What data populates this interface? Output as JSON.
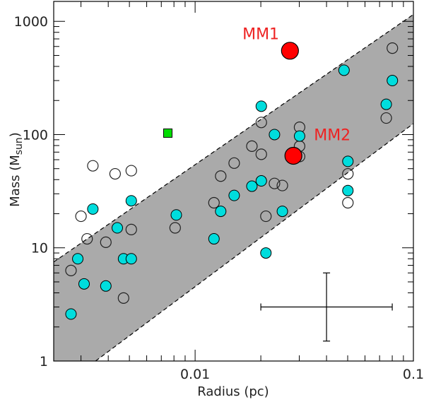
{
  "chart_data": {
    "type": "scatter",
    "xscale": "log",
    "yscale": "log",
    "xlim": [
      0.00225,
      0.1
    ],
    "ylim": [
      1,
      1500
    ],
    "xlabel": "Radius (pc)",
    "ylabel_main": "Mass (M",
    "ylabel_sub": "sun",
    "ylabel_close": ")",
    "x_ticks": [
      {
        "value": 0.01,
        "label": "0.01"
      },
      {
        "value": 0.1,
        "label": "0.1"
      }
    ],
    "y_ticks": [
      {
        "value": 1,
        "label": "1"
      },
      {
        "value": 10,
        "label": "10"
      },
      {
        "value": 100,
        "label": "100"
      },
      {
        "value": 1000,
        "label": "1000"
      }
    ],
    "band": {
      "upper": [
        [
          0.00225,
          7.5
        ],
        [
          0.1,
          1150
        ]
      ],
      "lower": [
        [
          0.0035,
          1
        ],
        [
          0.1,
          125
        ]
      ],
      "fill": "#aaaaaa"
    },
    "colors": {
      "open": "#222222",
      "cyan": "#00dddd",
      "red": "#ff0000",
      "green": "#00dd00",
      "label": "#ee2222"
    },
    "series": [
      {
        "name": "open",
        "points": [
          [
            0.0027,
            6.3
          ],
          [
            0.003,
            19
          ],
          [
            0.0032,
            12
          ],
          [
            0.0034,
            53
          ],
          [
            0.0039,
            11.2
          ],
          [
            0.0043,
            45
          ],
          [
            0.0047,
            3.6
          ],
          [
            0.0051,
            14.5
          ],
          [
            0.0051,
            48
          ],
          [
            0.0081,
            15
          ],
          [
            0.0122,
            25
          ],
          [
            0.0131,
            43
          ],
          [
            0.0151,
            56
          ],
          [
            0.0182,
            79
          ],
          [
            0.0201,
            67
          ],
          [
            0.0201,
            128
          ],
          [
            0.0211,
            19
          ],
          [
            0.0231,
            37
          ],
          [
            0.0251,
            35.5
          ],
          [
            0.0301,
            64
          ],
          [
            0.0301,
            79
          ],
          [
            0.0301,
            116
          ],
          [
            0.0501,
            25
          ],
          [
            0.0501,
            45
          ],
          [
            0.0751,
            140
          ],
          [
            0.0801,
            580
          ]
        ]
      },
      {
        "name": "cyan",
        "points": [
          [
            0.0027,
            2.6
          ],
          [
            0.0029,
            8
          ],
          [
            0.0031,
            4.8
          ],
          [
            0.0034,
            22
          ],
          [
            0.0039,
            4.6
          ],
          [
            0.0044,
            15
          ],
          [
            0.0047,
            8
          ],
          [
            0.0051,
            8
          ],
          [
            0.0051,
            26
          ],
          [
            0.0082,
            19.5
          ],
          [
            0.0122,
            12
          ],
          [
            0.0131,
            21
          ],
          [
            0.0151,
            29
          ],
          [
            0.0182,
            35
          ],
          [
            0.0201,
            39
          ],
          [
            0.0201,
            178
          ],
          [
            0.0211,
            9
          ],
          [
            0.0231,
            100
          ],
          [
            0.0251,
            21
          ],
          [
            0.0301,
            97
          ],
          [
            0.0481,
            370
          ],
          [
            0.0501,
            32
          ],
          [
            0.0501,
            58
          ],
          [
            0.0751,
            185
          ],
          [
            0.0801,
            300
          ]
        ]
      },
      {
        "name": "green",
        "marker": "square",
        "points": [
          [
            0.0075,
            103
          ]
        ]
      },
      {
        "name": "red",
        "points": [
          [
            0.0272,
            550
          ],
          [
            0.0282,
            65
          ]
        ]
      }
    ],
    "annotations": [
      {
        "text": "MM1",
        "x": 0.02,
        "y": 780
      },
      {
        "text": "MM2",
        "x": 0.0425,
        "y": 100
      }
    ],
    "error_bar": {
      "x": 0.04,
      "y": 3,
      "x_range": [
        0.02,
        0.08
      ],
      "y_range": [
        1.5,
        6
      ]
    }
  }
}
